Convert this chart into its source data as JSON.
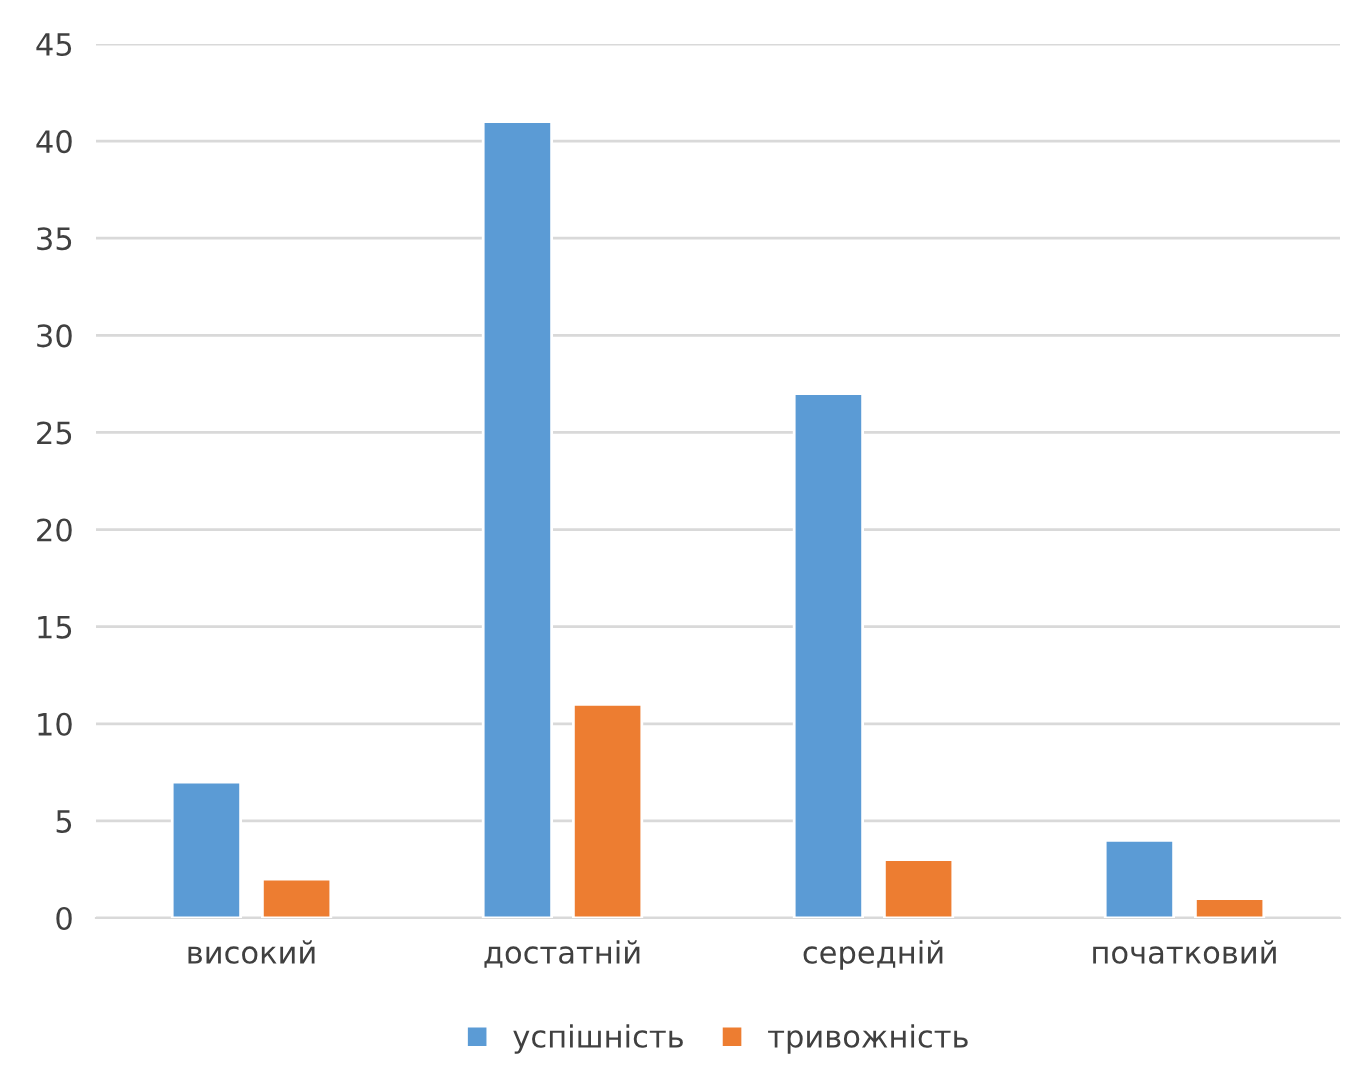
{
  "chart_data": {
    "type": "bar",
    "categories": [
      "високий",
      "достатній",
      "середній",
      "початковий"
    ],
    "series": [
      {
        "name": "успішність",
        "color": "#5b9bd5",
        "values": [
          7,
          41,
          27,
          4
        ]
      },
      {
        "name": "тривожність",
        "color": "#ed7d31",
        "values": [
          2,
          11,
          3,
          1
        ]
      }
    ],
    "ylim": [
      0,
      45
    ],
    "yticks": [
      0,
      5,
      10,
      15,
      20,
      25,
      30,
      35,
      40,
      45
    ],
    "grid": "y",
    "legend": "bottom"
  }
}
